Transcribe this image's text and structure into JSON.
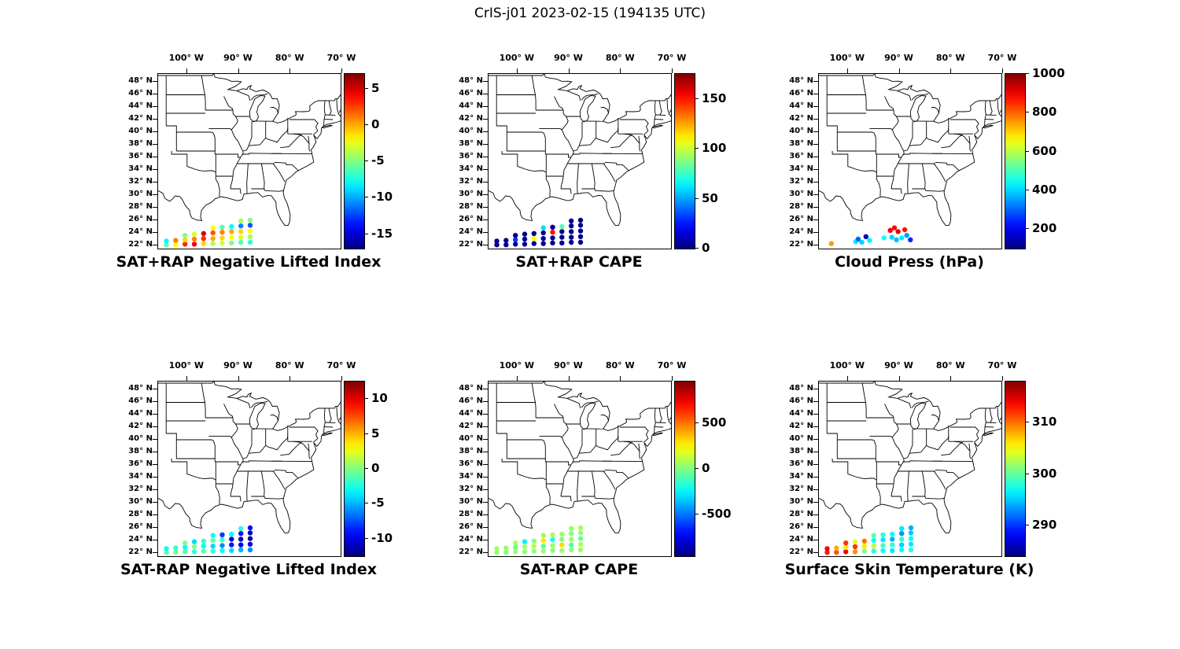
{
  "figure": {
    "title": "CrIS-j01 2023-02-15 (194135 UTC)",
    "x_tick_labels": [
      "100° W",
      "90° W",
      "80° W",
      "70° W"
    ],
    "x_tick_lons": [
      -100,
      -90,
      -80,
      -70
    ],
    "y_tick_labels": [
      "48° N",
      "46° N",
      "44° N",
      "42° N",
      "40° N",
      "38° N",
      "36° N",
      "34° N",
      "32° N",
      "30° N",
      "28° N",
      "26° N",
      "24° N",
      "22° N"
    ],
    "y_tick_lats": [
      48,
      46,
      44,
      42,
      40,
      38,
      36,
      34,
      32,
      30,
      28,
      26,
      24,
      22
    ],
    "lon_range": [
      -105.6,
      -70.3
    ],
    "lat_range": [
      21.5,
      49.25
    ]
  },
  "chart_data": [
    {
      "type": "scatter",
      "title": "SAT+RAP Negative Lifted Index",
      "colormap": "jet",
      "points_format": [
        "lon",
        "lat",
        "value"
      ],
      "colorbar": {
        "min": -17,
        "max": 7,
        "ticks": [
          5,
          0,
          -5,
          -10,
          -15
        ]
      },
      "points": [
        [
          -104,
          22.1,
          -6
        ],
        [
          -104,
          22.7,
          -8
        ],
        [
          -102.2,
          22.1,
          -2
        ],
        [
          -102.2,
          22.8,
          1
        ],
        [
          -100.4,
          22.2,
          3
        ],
        [
          -100.4,
          22.9,
          -1
        ],
        [
          -100.4,
          23.6,
          -5
        ],
        [
          -98.6,
          22.2,
          4
        ],
        [
          -98.6,
          23,
          1
        ],
        [
          -98.6,
          23.8,
          -3
        ],
        [
          -96.8,
          22.3,
          -1
        ],
        [
          -96.8,
          23.1,
          3
        ],
        [
          -96.8,
          23.9,
          5
        ],
        [
          -95,
          22.3,
          -4
        ],
        [
          -95,
          23.1,
          0
        ],
        [
          -95,
          24,
          2
        ],
        [
          -95,
          24.8,
          -2
        ],
        [
          -93.2,
          22.4,
          -3
        ],
        [
          -93.2,
          23.2,
          -1
        ],
        [
          -93.2,
          24.1,
          1
        ],
        [
          -93.2,
          24.9,
          -6
        ],
        [
          -91.4,
          22.4,
          -5
        ],
        [
          -91.4,
          23.3,
          -2
        ],
        [
          -91.4,
          24.2,
          0
        ],
        [
          -91.4,
          25,
          -8
        ],
        [
          -89.6,
          22.5,
          -6
        ],
        [
          -89.6,
          23.3,
          -3
        ],
        [
          -89.6,
          24.2,
          -1
        ],
        [
          -89.6,
          25.1,
          -11
        ],
        [
          -89.6,
          25.9,
          -4
        ],
        [
          -87.8,
          22.5,
          -7
        ],
        [
          -87.8,
          23.4,
          -4
        ],
        [
          -87.8,
          24.3,
          -2
        ],
        [
          -87.8,
          25.2,
          -12
        ],
        [
          -87.8,
          26,
          -5
        ]
      ]
    },
    {
      "type": "scatter",
      "title": "SAT+RAP CAPE",
      "colormap": "jet",
      "points_format": [
        "lon",
        "lat",
        "value"
      ],
      "colorbar": {
        "min": 0,
        "max": 175,
        "ticks": [
          150,
          100,
          50,
          0
        ]
      },
      "points": [
        [
          -104,
          22.1,
          3
        ],
        [
          -104,
          22.7,
          2
        ],
        [
          -102.2,
          22.1,
          4
        ],
        [
          -102.2,
          22.8,
          2
        ],
        [
          -100.4,
          22.2,
          3
        ],
        [
          -100.4,
          22.9,
          30
        ],
        [
          -100.4,
          23.6,
          2
        ],
        [
          -98.6,
          22.2,
          5
        ],
        [
          -98.6,
          23,
          2
        ],
        [
          -98.6,
          23.8,
          3
        ],
        [
          -96.8,
          22.3,
          4
        ],
        [
          -96.8,
          23.1,
          110
        ],
        [
          -96.8,
          23.9,
          3
        ],
        [
          -95,
          22.3,
          3
        ],
        [
          -95,
          23.1,
          5
        ],
        [
          -95,
          24,
          2
        ],
        [
          -95,
          24.8,
          60
        ],
        [
          -93.2,
          22.4,
          4
        ],
        [
          -93.2,
          23.2,
          2
        ],
        [
          -93.2,
          24.1,
          150
        ],
        [
          -93.2,
          24.9,
          3
        ],
        [
          -91.4,
          22.4,
          5
        ],
        [
          -91.4,
          23.3,
          3
        ],
        [
          -91.4,
          24.2,
          2
        ],
        [
          -91.4,
          25,
          80
        ],
        [
          -89.6,
          22.5,
          4
        ],
        [
          -89.6,
          23.3,
          2
        ],
        [
          -89.6,
          24.2,
          3
        ],
        [
          -89.6,
          25.1,
          2
        ],
        [
          -89.6,
          25.9,
          5
        ],
        [
          -87.8,
          22.5,
          3
        ],
        [
          -87.8,
          23.4,
          2
        ],
        [
          -87.8,
          24.3,
          4
        ],
        [
          -87.8,
          25.2,
          2
        ],
        [
          -87.8,
          26,
          3
        ]
      ]
    },
    {
      "type": "scatter",
      "title": "Cloud Press (hPa)",
      "colormap": "jet",
      "points_format": [
        "lon",
        "lat",
        "value"
      ],
      "colorbar": {
        "min": 100,
        "max": 1000,
        "ticks": [
          1000,
          800,
          600,
          400,
          200
        ]
      },
      "points": [
        [
          -103.2,
          22.3,
          750
        ],
        [
          -98.5,
          22.6,
          420
        ],
        [
          -98,
          23,
          300
        ],
        [
          -97.3,
          22.5,
          400
        ],
        [
          -96.5,
          23.4,
          150
        ],
        [
          -95.8,
          22.8,
          430
        ],
        [
          -93,
          23.2,
          450
        ],
        [
          -91.8,
          24.4,
          900
        ],
        [
          -91,
          24.8,
          880
        ],
        [
          -90.3,
          24.2,
          920
        ],
        [
          -91.5,
          23.3,
          400
        ],
        [
          -90.6,
          22.9,
          380
        ],
        [
          -89.6,
          23.2,
          420
        ],
        [
          -88.6,
          23.6,
          350
        ],
        [
          -87.9,
          22.9,
          250
        ],
        [
          -89,
          24.5,
          870
        ]
      ]
    },
    {
      "type": "scatter",
      "title": "SAT-RAP Negative Lifted Index",
      "colormap": "jet",
      "points_format": [
        "lon",
        "lat",
        "value"
      ],
      "colorbar": {
        "min": -12.5,
        "max": 12.5,
        "ticks": [
          10,
          5,
          0,
          -5,
          -10
        ]
      },
      "points": [
        [
          -104,
          22.1,
          -1
        ],
        [
          -104,
          22.7,
          -3
        ],
        [
          -102.2,
          22.1,
          0
        ],
        [
          -102.2,
          22.8,
          -2
        ],
        [
          -100.4,
          22.2,
          -1
        ],
        [
          -100.4,
          22.9,
          -3
        ],
        [
          -100.4,
          23.6,
          0
        ],
        [
          -98.6,
          22.2,
          -2
        ],
        [
          -98.6,
          23,
          0
        ],
        [
          -98.6,
          23.8,
          -4
        ],
        [
          -96.8,
          22.3,
          -1
        ],
        [
          -96.8,
          23.1,
          -3
        ],
        [
          -96.8,
          23.9,
          -2
        ],
        [
          -95,
          22.3,
          -2
        ],
        [
          -95,
          23.1,
          -4
        ],
        [
          -95,
          24,
          -1
        ],
        [
          -95,
          24.8,
          -3
        ],
        [
          -93.2,
          22.4,
          -3
        ],
        [
          -93.2,
          23.2,
          -6
        ],
        [
          -93.2,
          24.1,
          -2
        ],
        [
          -93.2,
          24.9,
          -8
        ],
        [
          -91.4,
          22.4,
          -4
        ],
        [
          -91.4,
          23.3,
          -9
        ],
        [
          -91.4,
          24.2,
          -10
        ],
        [
          -91.4,
          25,
          -3
        ],
        [
          -89.6,
          22.5,
          -5
        ],
        [
          -89.6,
          23.3,
          -10
        ],
        [
          -89.6,
          24.2,
          -11
        ],
        [
          -89.6,
          25.1,
          -9
        ],
        [
          -89.6,
          25.9,
          -2
        ],
        [
          -87.8,
          22.5,
          -6
        ],
        [
          -87.8,
          23.4,
          -10
        ],
        [
          -87.8,
          24.3,
          -12
        ],
        [
          -87.8,
          25.2,
          -11
        ],
        [
          -87.8,
          26,
          -9
        ]
      ]
    },
    {
      "type": "scatter",
      "title": "SAT-RAP CAPE",
      "colormap": "jet",
      "points_format": [
        "lon",
        "lat",
        "value"
      ],
      "colorbar": {
        "min": -950,
        "max": 950,
        "ticks": [
          500,
          0,
          -500
        ]
      },
      "points": [
        [
          -104,
          22.1,
          30
        ],
        [
          -104,
          22.7,
          60
        ],
        [
          -102.2,
          22.1,
          0
        ],
        [
          -102.2,
          22.8,
          40
        ],
        [
          -100.4,
          22.2,
          50
        ],
        [
          -100.4,
          22.9,
          -40
        ],
        [
          -100.4,
          23.6,
          80
        ],
        [
          -98.6,
          22.2,
          20
        ],
        [
          -98.6,
          23,
          70
        ],
        [
          -98.6,
          23.8,
          -260
        ],
        [
          -96.8,
          22.3,
          40
        ],
        [
          -96.8,
          23.1,
          100
        ],
        [
          -96.8,
          23.9,
          10
        ],
        [
          -95,
          22.3,
          60
        ],
        [
          -95,
          23.1,
          -60
        ],
        [
          -95,
          24,
          280
        ],
        [
          -95,
          24.8,
          30
        ],
        [
          -93.2,
          22.4,
          10
        ],
        [
          -93.2,
          23.2,
          50
        ],
        [
          -93.2,
          24.1,
          -200
        ],
        [
          -93.2,
          24.9,
          80
        ],
        [
          -91.4,
          22.4,
          40
        ],
        [
          -91.4,
          23.3,
          300
        ],
        [
          -91.4,
          24.2,
          0
        ],
        [
          -91.4,
          25,
          50
        ],
        [
          -89.6,
          22.5,
          30
        ],
        [
          -89.6,
          23.3,
          -100
        ],
        [
          -89.6,
          24.2,
          60
        ],
        [
          -89.6,
          25.1,
          10
        ],
        [
          -89.6,
          25.9,
          40
        ],
        [
          -87.8,
          22.5,
          50
        ],
        [
          -87.8,
          23.4,
          80
        ],
        [
          -87.8,
          24.3,
          -50
        ],
        [
          -87.8,
          25.2,
          30
        ],
        [
          -87.8,
          26,
          70
        ]
      ]
    },
    {
      "type": "scatter",
      "title": "Surface Skin Temperature (K)",
      "colormap": "jet",
      "points_format": [
        "lon",
        "lat",
        "value"
      ],
      "colorbar": {
        "min": 284,
        "max": 318,
        "ticks": [
          310,
          300,
          290
        ]
      },
      "points": [
        [
          -104,
          22.1,
          313
        ],
        [
          -104,
          22.7,
          314
        ],
        [
          -102.2,
          22.1,
          311
        ],
        [
          -102.2,
          22.8,
          308
        ],
        [
          -100.4,
          22.2,
          314
        ],
        [
          -100.4,
          22.9,
          306
        ],
        [
          -100.4,
          23.6,
          312
        ],
        [
          -98.6,
          22.2,
          309
        ],
        [
          -98.6,
          23,
          312
        ],
        [
          -98.6,
          23.8,
          304
        ],
        [
          -96.8,
          22.3,
          301
        ],
        [
          -96.8,
          23.1,
          306
        ],
        [
          -96.8,
          23.9,
          310
        ],
        [
          -95,
          22.3,
          298
        ],
        [
          -95,
          23.1,
          303
        ],
        [
          -95,
          24,
          297
        ],
        [
          -95,
          24.8,
          300
        ],
        [
          -93.2,
          22.4,
          297
        ],
        [
          -93.2,
          23.2,
          299
        ],
        [
          -93.2,
          24.1,
          296
        ],
        [
          -93.2,
          24.9,
          298
        ],
        [
          -91.4,
          22.4,
          296
        ],
        [
          -91.4,
          23.3,
          298
        ],
        [
          -91.4,
          24.2,
          294
        ],
        [
          -91.4,
          25,
          297
        ],
        [
          -89.6,
          22.5,
          297
        ],
        [
          -89.6,
          23.3,
          295
        ],
        [
          -89.6,
          24.2,
          298
        ],
        [
          -89.6,
          25.1,
          293
        ],
        [
          -89.6,
          25.9,
          296
        ],
        [
          -87.8,
          22.5,
          298
        ],
        [
          -87.8,
          23.4,
          296
        ],
        [
          -87.8,
          24.3,
          297
        ],
        [
          -87.8,
          25.2,
          295
        ],
        [
          -87.8,
          26,
          294
        ]
      ]
    }
  ]
}
